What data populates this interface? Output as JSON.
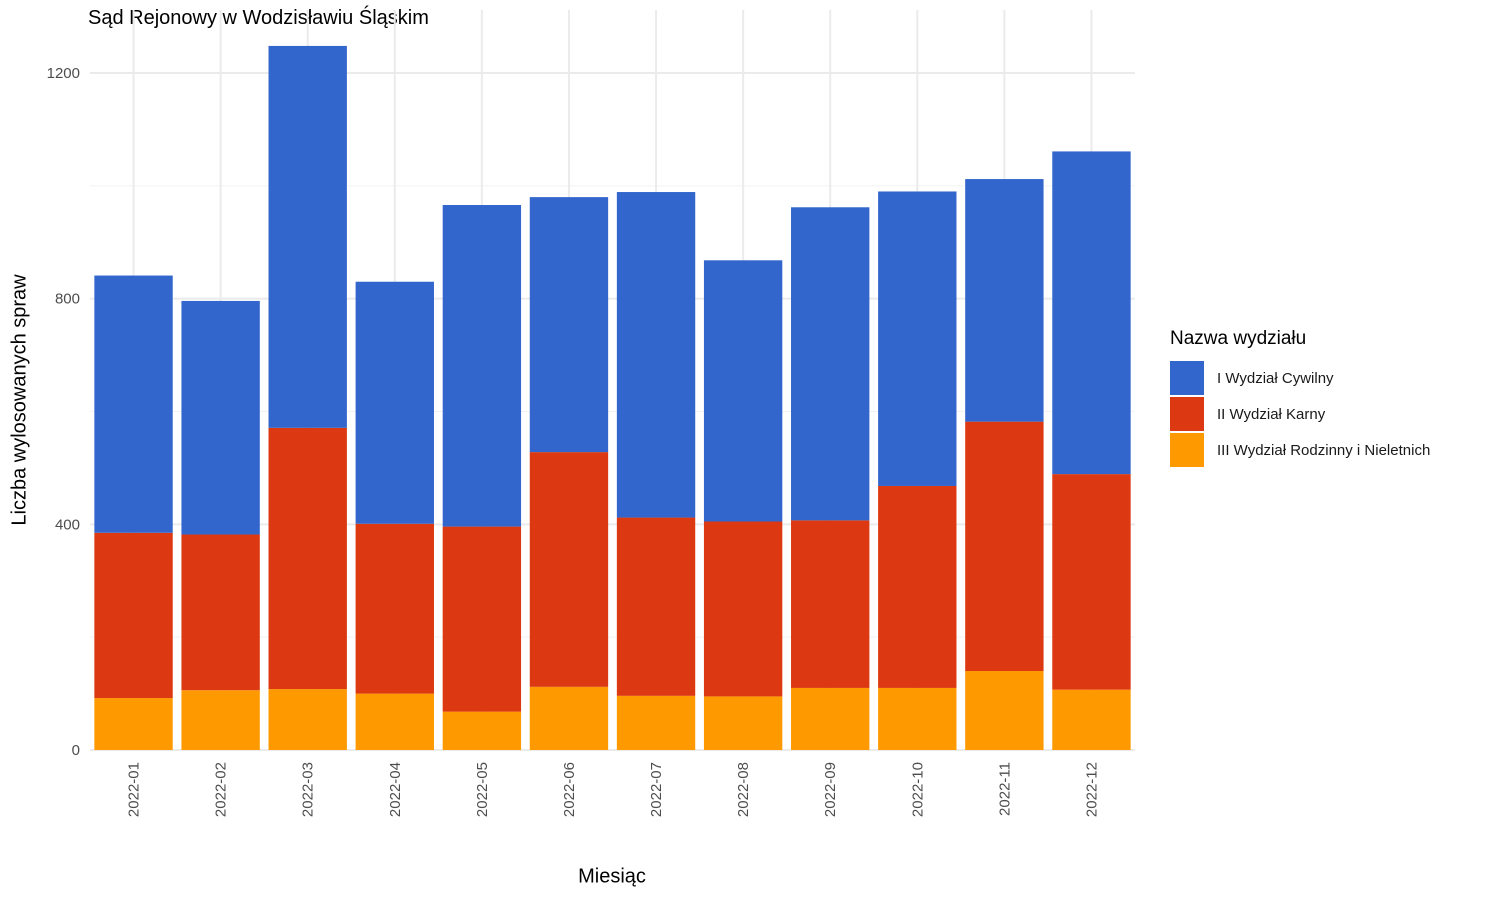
{
  "chart_data": {
    "type": "bar",
    "stacked": true,
    "title": "Sąd Rejonowy w Wodzisławiu Śląskim",
    "xlabel": "Miesiąc",
    "ylabel": "Liczba wylosowanych spraw",
    "ylim": [
      0,
      1250
    ],
    "yticks": [
      0,
      400,
      800,
      1200
    ],
    "grid": true,
    "legend_position": "right",
    "legend_title": "Nazwa wydziału",
    "categories": [
      "2022-01",
      "2022-02",
      "2022-03",
      "2022-04",
      "2022-05",
      "2022-06",
      "2022-07",
      "2022-08",
      "2022-09",
      "2022-10",
      "2022-11",
      "2022-12"
    ],
    "series": [
      {
        "name": "III Wydział Rodzinny i Nieletnich",
        "color": "#FF9900",
        "values": [
          92,
          106,
          108,
          100,
          68,
          112,
          96,
          95,
          110,
          110,
          140,
          107
        ]
      },
      {
        "name": "II Wydział Karny",
        "color": "#DC3912",
        "values": [
          293,
          276,
          463,
          301,
          328,
          416,
          316,
          310,
          297,
          358,
          442,
          382
        ]
      },
      {
        "name": "I Wydział Cywilny",
        "color": "#3366CC",
        "values": [
          456,
          414,
          677,
          429,
          570,
          452,
          577,
          463,
          555,
          522,
          430,
          572
        ]
      }
    ]
  }
}
